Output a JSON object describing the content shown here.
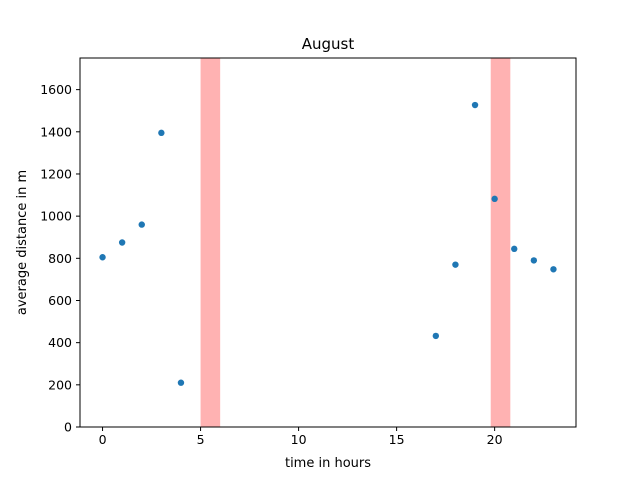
{
  "chart_data": {
    "type": "scatter",
    "title": "August",
    "xlabel": "time in hours",
    "ylabel": "average distance in m",
    "xlim": [
      -1.15,
      24.15
    ],
    "ylim": [
      0,
      1750
    ],
    "xticks": [
      0,
      5,
      10,
      15,
      20
    ],
    "yticks": [
      0,
      200,
      400,
      600,
      800,
      1000,
      1200,
      1400,
      1600
    ],
    "grid": false,
    "highlight_bands": [
      {
        "x_start": 5,
        "x_end": 6,
        "color": "#ff0000",
        "alpha": 0.3
      },
      {
        "x_start": 19.8,
        "x_end": 20.8,
        "color": "#ff0000",
        "alpha": 0.3
      }
    ],
    "series": [
      {
        "color": "#1f77b4",
        "x": [
          0,
          1,
          2,
          3,
          4,
          17,
          18,
          19,
          20,
          21,
          22,
          23
        ],
        "y": [
          805,
          875,
          960,
          1395,
          210,
          432,
          770,
          1527,
          1082,
          845,
          790,
          748
        ]
      }
    ]
  }
}
